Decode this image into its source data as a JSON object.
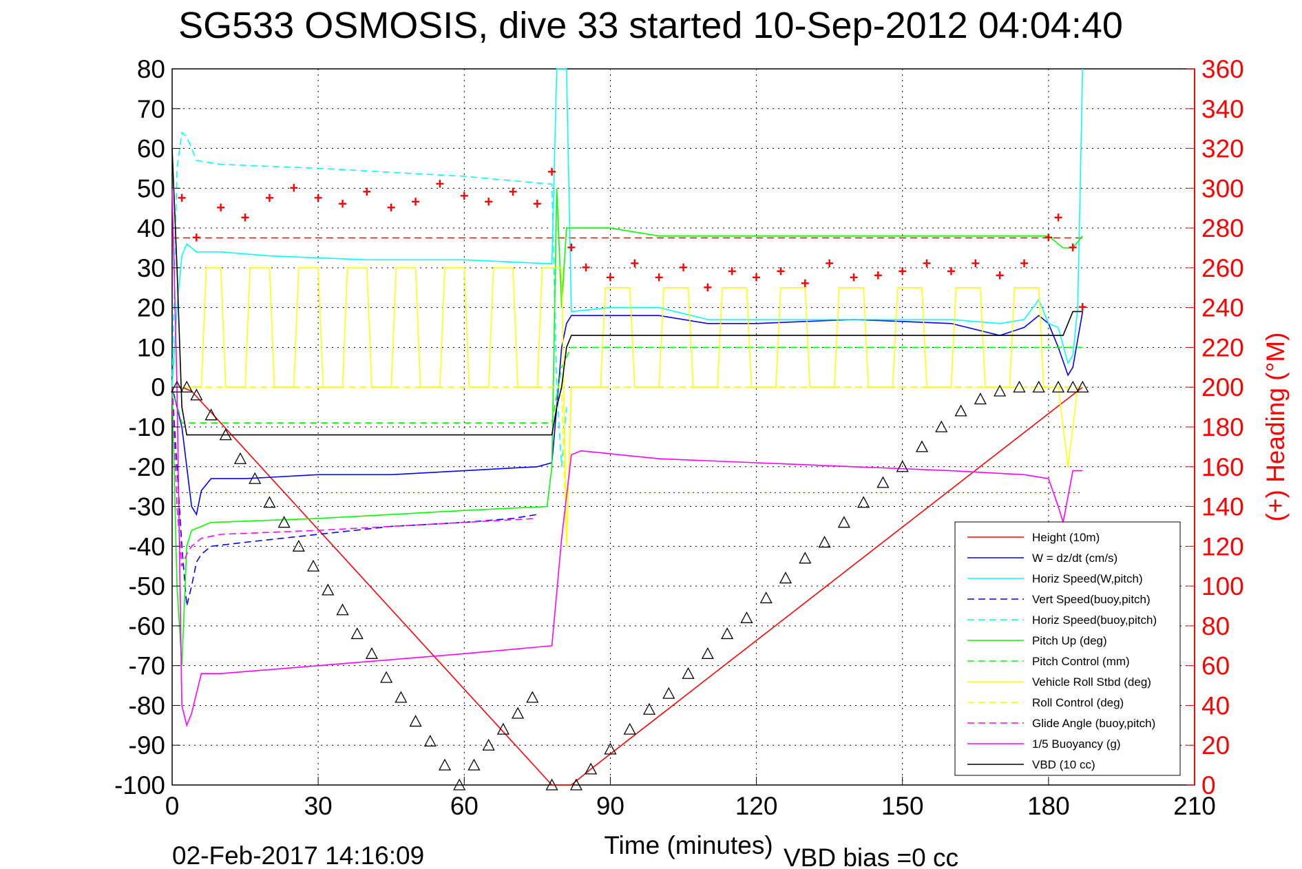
{
  "chart_data": {
    "type": "line",
    "title": "SG533 OSMOSIS, dive 33 started 10-Sep-2012 04:04:40",
    "xlabel": "Time (minutes)",
    "ylabel": "",
    "ylabel_right": "(+) Heading (°M)",
    "xlim": [
      0,
      210
    ],
    "ylim": [
      -100,
      80
    ],
    "ylim_right": [
      0,
      360
    ],
    "xticks": [
      "0",
      "30",
      "60",
      "90",
      "120",
      "150",
      "180",
      "210"
    ],
    "yticks": [
      "80",
      "70",
      "60",
      "50",
      "40",
      "30",
      "20",
      "10",
      "0",
      "-10",
      "-20",
      "-30",
      "-40",
      "-50",
      "-60",
      "-70",
      "-80",
      "-90",
      "-100"
    ],
    "yticks_right": [
      "360",
      "340",
      "320",
      "300",
      "280",
      "260",
      "240",
      "220",
      "200",
      "180",
      "160",
      "140",
      "120",
      "100",
      "80",
      "60",
      "40",
      "20",
      "0"
    ],
    "grid": true,
    "legend_position": "bottom-right",
    "footer_date": "02-Feb-2017 14:16:09",
    "footer_note": "VBD bias =0 cc",
    "colors": {
      "red": "#ff0000",
      "blue": "#0000ff",
      "cyan": "#00ffff",
      "green": "#00ff00",
      "yellow": "#ffff00",
      "magenta": "#ff00ff",
      "black": "#000000"
    },
    "series": [
      {
        "name": "Height (10m)",
        "color": "#ff0000",
        "style": "solid",
        "x": [
          0,
          2,
          4,
          78,
          82,
          86,
          187
        ],
        "y": [
          0,
          0,
          -1,
          -100,
          -100,
          -96,
          0
        ]
      },
      {
        "name": "W = dz/dt (cm/s)",
        "color": "#0000ff",
        "style": "solid",
        "x": [
          0,
          1,
          2,
          3,
          4,
          5,
          6,
          8,
          15,
          30,
          45,
          60,
          75,
          78,
          79,
          80,
          81,
          82,
          85,
          90,
          100,
          110,
          120,
          140,
          160,
          170,
          175,
          178,
          180,
          182,
          184,
          185,
          187
        ],
        "y": [
          0,
          -5,
          -10,
          -20,
          -30,
          -32,
          -26,
          -23,
          -23,
          -22,
          -22,
          -21,
          -20,
          -19,
          -5,
          10,
          16,
          18,
          18,
          18,
          18,
          16,
          16,
          17,
          16,
          13,
          15,
          18,
          16,
          10,
          3,
          5,
          19
        ]
      },
      {
        "name": "Horiz Speed(W,pitch)",
        "color": "#00ffff",
        "style": "solid",
        "x": [
          0,
          1,
          2,
          3,
          4,
          5,
          10,
          20,
          40,
          60,
          78,
          79,
          80,
          81,
          82,
          90,
          100,
          110,
          120,
          140,
          160,
          170,
          175,
          178,
          180,
          182,
          184,
          185,
          186,
          187
        ],
        "y": [
          0,
          20,
          33,
          36,
          35,
          34,
          34,
          33,
          32,
          32,
          31,
          80,
          80,
          80,
          19,
          20,
          20,
          17,
          17,
          17,
          17,
          16,
          17,
          22,
          16,
          15,
          6,
          8,
          20,
          80
        ]
      },
      {
        "name": "Vert Speed(buoy,pitch)",
        "color": "#0000ff",
        "style": "dashed",
        "x": [
          0,
          1,
          2,
          3,
          4,
          5,
          6,
          8,
          15,
          30,
          45,
          60,
          70,
          75
        ],
        "y": [
          0,
          -20,
          -40,
          -55,
          -50,
          -44,
          -42,
          -40,
          -39,
          -37,
          -35,
          -34,
          -33,
          -32
        ]
      },
      {
        "name": "Horiz Speed(buoy,pitch)",
        "color": "#00ffff",
        "style": "dashed",
        "x": [
          0,
          1,
          2,
          3,
          5,
          10,
          30,
          60,
          78,
          79,
          80,
          81
        ],
        "y": [
          0,
          55,
          64,
          63,
          57,
          56,
          55,
          53,
          51,
          0,
          -20,
          -5
        ]
      },
      {
        "name": "Pitch Up (deg)",
        "color": "#00ff00",
        "style": "solid",
        "x": [
          0,
          1,
          2,
          3,
          4,
          8,
          30,
          60,
          77,
          78,
          79,
          80,
          81,
          82,
          90,
          100,
          120,
          140,
          160,
          180,
          183,
          185,
          187
        ],
        "y": [
          0,
          -50,
          -70,
          -40,
          -36,
          -34,
          -33,
          -31,
          -30,
          -20,
          50,
          20,
          40,
          40,
          40,
          38,
          38,
          38,
          38,
          38,
          35,
          35,
          38
        ]
      },
      {
        "name": "Pitch Control (mm)",
        "color": "#00ff00",
        "style": "dashed",
        "x": [
          0,
          2,
          4,
          10,
          77,
          78,
          80,
          82,
          187
        ],
        "y": [
          0,
          -9,
          -9,
          -9,
          -9,
          -9,
          5,
          10,
          10
        ]
      },
      {
        "name": "Vehicle Roll Stbd (deg)",
        "color": "#ffff00",
        "style": "solid",
        "x": [
          0,
          6,
          7,
          10,
          11,
          15,
          16,
          20,
          21,
          25,
          26,
          30,
          31,
          35,
          36,
          40,
          41,
          45,
          46,
          50,
          51,
          55,
          56,
          60,
          61,
          65,
          66,
          70,
          71,
          75,
          76,
          80,
          81,
          82,
          84,
          88,
          89,
          94,
          95,
          100,
          101,
          106,
          107,
          112,
          113,
          118,
          119,
          124,
          125,
          130,
          131,
          136,
          137,
          142,
          143,
          148,
          149,
          154,
          155,
          160,
          161,
          166,
          167,
          172,
          173,
          178,
          179,
          182,
          184,
          186
        ],
        "y": [
          0,
          0,
          30,
          30,
          0,
          0,
          30,
          30,
          0,
          0,
          30,
          30,
          0,
          0,
          30,
          30,
          0,
          0,
          30,
          30,
          0,
          0,
          30,
          30,
          0,
          0,
          30,
          30,
          0,
          0,
          30,
          30,
          -40,
          0,
          0,
          0,
          25,
          25,
          0,
          0,
          25,
          25,
          0,
          0,
          25,
          25,
          0,
          0,
          25,
          25,
          0,
          0,
          25,
          25,
          0,
          0,
          25,
          25,
          0,
          0,
          25,
          25,
          0,
          0,
          25,
          25,
          0,
          0,
          -20,
          0
        ]
      },
      {
        "name": "Roll Control (deg)",
        "color": "#ffff00",
        "style": "dashed",
        "x": [
          0,
          5,
          78,
          80,
          81,
          82,
          187
        ],
        "y": [
          0,
          0,
          0,
          0,
          -40,
          0,
          0
        ]
      },
      {
        "name": "Glide Angle (buoy,pitch)",
        "color": "#ff00ff",
        "style": "dashed",
        "x": [
          0,
          1,
          2,
          3,
          4,
          6,
          10,
          30,
          60,
          75
        ],
        "y": [
          0,
          -30,
          -45,
          -42,
          -40,
          -38,
          -37,
          -36,
          -34,
          -33
        ]
      },
      {
        "name": "1/5 Buoyancy (g)",
        "color": "#ff00ff",
        "style": "solid",
        "x": [
          0,
          1,
          2,
          3,
          4,
          6,
          10,
          30,
          60,
          78,
          80,
          82,
          84,
          100,
          120,
          140,
          160,
          175,
          180,
          182,
          183,
          185,
          187
        ],
        "y": [
          50,
          0,
          -80,
          -85,
          -82,
          -72,
          -72,
          -70,
          -67,
          -65,
          -38,
          -17,
          -16,
          -18,
          -19,
          -20,
          -21,
          -22,
          -23,
          -30,
          -34,
          -21,
          -21
        ]
      },
      {
        "name": "VBD (10 cc)",
        "color": "#000000",
        "style": "solid",
        "x": [
          0,
          1,
          2,
          3,
          5,
          20,
          78,
          79,
          80,
          81,
          82,
          183,
          185,
          187
        ],
        "y": [
          60,
          30,
          -5,
          -12,
          -12,
          -12,
          -12,
          -5,
          0,
          10,
          13,
          13,
          19,
          19
        ]
      }
    ],
    "heading_marker": {
      "symbol": "+",
      "color": "#ff0000",
      "y_axis": "right",
      "x": [
        2,
        5,
        10,
        15,
        20,
        25,
        30,
        35,
        40,
        45,
        50,
        55,
        60,
        65,
        70,
        75,
        78,
        82,
        85,
        90,
        95,
        100,
        105,
        110,
        115,
        120,
        125,
        130,
        135,
        140,
        145,
        150,
        155,
        160,
        165,
        170,
        175,
        180,
        182,
        185,
        187
      ],
      "y": [
        295,
        275,
        290,
        285,
        295,
        300,
        295,
        292,
        298,
        290,
        293,
        302,
        296,
        293,
        298,
        292,
        308,
        270,
        260,
        255,
        262,
        255,
        260,
        250,
        258,
        255,
        258,
        252,
        262,
        255,
        256,
        258,
        262,
        258,
        262,
        256,
        262,
        275,
        285,
        270,
        240
      ]
    },
    "heading_reference": {
      "color": "#ff0000",
      "style": "dashed",
      "y_axis": "right",
      "value": 275
    },
    "depth_markers": {
      "symbol": "triangle",
      "color": "#000000",
      "x": [
        1,
        3,
        5,
        8,
        11,
        14,
        17,
        20,
        23,
        26,
        29,
        32,
        35,
        38,
        41,
        44,
        47,
        50,
        53,
        56,
        59,
        62,
        65,
        68,
        71,
        74,
        78,
        83,
        86,
        90,
        94,
        98,
        102,
        106,
        110,
        114,
        118,
        122,
        126,
        130,
        134,
        138,
        142,
        146,
        150,
        154,
        158,
        162,
        166,
        170,
        174,
        178,
        182,
        185,
        187
      ],
      "y": [
        0,
        0,
        -2,
        -7,
        -12,
        -18,
        -23,
        -29,
        -34,
        -40,
        -45,
        -51,
        -56,
        -62,
        -67,
        -73,
        -78,
        -84,
        -89,
        -95,
        -100,
        -95,
        -90,
        -86,
        -82,
        -78,
        -100,
        -100,
        -96,
        -91,
        -86,
        -81,
        -77,
        -72,
        -67,
        -62,
        -58,
        -53,
        -48,
        -43,
        -39,
        -34,
        -29,
        -24,
        -20,
        -15,
        -10,
        -6,
        -3,
        -1,
        0,
        0,
        0,
        0,
        0
      ]
    },
    "purple_dotted_reference": {
      "color": "#0000ff",
      "style": "dotted",
      "value": -26.5
    }
  }
}
